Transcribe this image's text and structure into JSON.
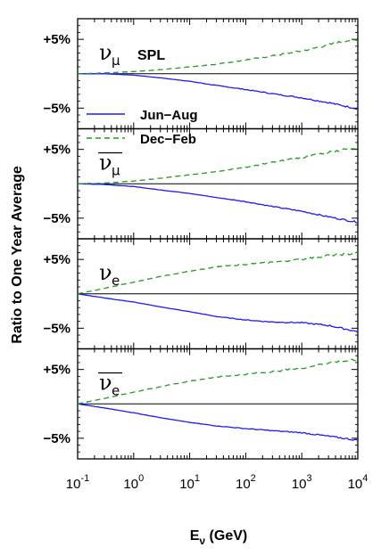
{
  "chart_data": {
    "type": "line",
    "ylabel": "Ratio to One Year Average",
    "xlabel_main": "E",
    "xlabel_sub": "ν",
    "xlabel_unit": " (GeV)",
    "x_scale": "log",
    "xlim": [
      0.1,
      10000
    ],
    "x_tick_bases": [
      "10",
      "10",
      "10",
      "10",
      "10",
      "10"
    ],
    "x_tick_exps": [
      "-1",
      "0",
      "1",
      "2",
      "3",
      "4"
    ],
    "x_tick_values": [
      0.1,
      1,
      10,
      100,
      1000,
      10000
    ],
    "ylim_percent": [
      -8,
      8
    ],
    "y_tick_labels": [
      "+5%",
      "−5%"
    ],
    "y_tick_values": [
      5,
      -5
    ],
    "annotation": "SPL",
    "legend": {
      "placement": "upper-left of second panel",
      "entries": [
        {
          "label": "Jun−Aug",
          "style": "solid",
          "color": "#1a1aff"
        },
        {
          "label": "Dec−Feb",
          "style": "dashed",
          "color": "#1f9a1f"
        }
      ]
    },
    "panels": [
      {
        "flavor_label": "ν",
        "flavor_sub": "μ",
        "anti": false,
        "series": [
          {
            "name": "Jun−Aug",
            "x": [
              0.1,
              0.3,
              1,
              3,
              10,
              30,
              100,
              300,
              1000,
              3000,
              10000
            ],
            "y": [
              0,
              0,
              -0.2,
              -0.6,
              -1.1,
              -1.7,
              -2.3,
              -2.9,
              -3.5,
              -4.2,
              -5.1
            ]
          },
          {
            "name": "Dec−Feb",
            "x": [
              0.1,
              0.3,
              1,
              3,
              10,
              30,
              100,
              300,
              1000,
              3000,
              6000,
              10000
            ],
            "y": [
              0,
              0.1,
              0.3,
              0.6,
              1.0,
              1.4,
              2.0,
              2.6,
              3.3,
              4.2,
              4.8,
              4.9
            ]
          }
        ]
      },
      {
        "flavor_label": "ν",
        "flavor_sub": "μ",
        "anti": true,
        "series": [
          {
            "name": "Jun−Aug",
            "x": [
              0.1,
              0.3,
              1,
              3,
              10,
              30,
              100,
              300,
              1000,
              3000,
              10000
            ],
            "y": [
              0,
              -0.1,
              -0.4,
              -0.9,
              -1.4,
              -2.0,
              -2.6,
              -3.3,
              -4.0,
              -4.8,
              -5.6
            ]
          },
          {
            "name": "Dec−Feb",
            "x": [
              0.1,
              0.3,
              1,
              3,
              10,
              30,
              100,
              300,
              1000,
              3000,
              10000
            ],
            "y": [
              0,
              0.1,
              0.4,
              0.8,
              1.3,
              1.8,
              2.4,
              3.1,
              3.8,
              4.6,
              5.3
            ]
          }
        ]
      },
      {
        "flavor_label": "ν",
        "flavor_sub": "e",
        "anti": false,
        "series": [
          {
            "name": "Jun−Aug",
            "x": [
              0.1,
              0.3,
              1,
              3,
              10,
              30,
              100,
              300,
              1000,
              3000,
              10000
            ],
            "y": [
              0,
              -0.6,
              -1.2,
              -1.9,
              -2.6,
              -3.3,
              -3.8,
              -4.1,
              -4.2,
              -4.6,
              -5.5
            ]
          },
          {
            "name": "Dec−Feb",
            "x": [
              0.1,
              0.3,
              1,
              3,
              10,
              30,
              100,
              300,
              1000,
              3000,
              10000
            ],
            "y": [
              0,
              0.8,
              1.7,
              2.5,
              3.3,
              3.9,
              4.3,
              4.6,
              5.0,
              5.6,
              5.9
            ]
          }
        ]
      },
      {
        "flavor_label": "ν",
        "flavor_sub": "e",
        "anti": true,
        "series": [
          {
            "name": "Jun−Aug",
            "x": [
              0.1,
              0.3,
              1,
              3,
              10,
              30,
              100,
              300,
              1000,
              3000,
              10000
            ],
            "y": [
              0,
              -0.6,
              -1.3,
              -2.0,
              -2.7,
              -3.2,
              -3.6,
              -3.9,
              -4.2,
              -4.7,
              -5.3
            ]
          },
          {
            "name": "Dec−Feb",
            "x": [
              0.1,
              0.3,
              1,
              3,
              10,
              30,
              100,
              300,
              1000,
              3000,
              10000
            ],
            "y": [
              0,
              0.8,
              1.7,
              2.5,
              3.3,
              3.9,
              4.3,
              4.7,
              5.2,
              6.0,
              6.4
            ]
          }
        ]
      }
    ]
  }
}
